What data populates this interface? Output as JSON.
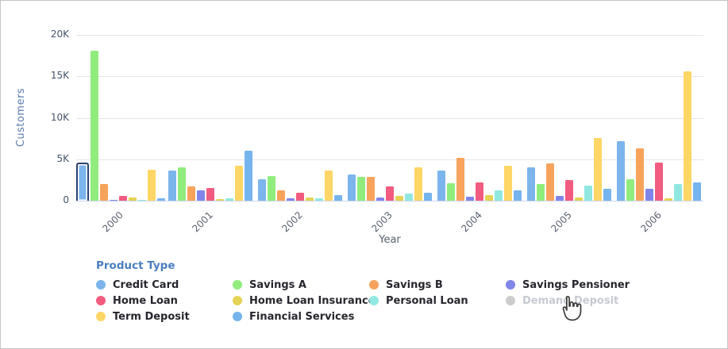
{
  "chart": {
    "y_axis": {
      "title": "Customers",
      "tick_labels": [
        "0",
        "5K",
        "10K",
        "15K",
        "20K"
      ],
      "tick_values": [
        0,
        5000,
        10000,
        15000,
        20000
      ],
      "max": 20000
    },
    "x_axis": {
      "title": "Year"
    }
  },
  "chart_data": {
    "type": "bar",
    "title": "",
    "xlabel": "Year",
    "ylabel": "Customers",
    "ylim": [
      0,
      20000
    ],
    "grid": true,
    "legend_position": "bottom",
    "categories": [
      "2000",
      "2001",
      "2002",
      "2003",
      "2004",
      "2005",
      "2006"
    ],
    "series": [
      {
        "name": "Credit Card",
        "color": "#7cb5ec",
        "values": [
          4400,
          3600,
          2600,
          3200,
          3600,
          4000,
          7200
        ]
      },
      {
        "name": "Savings A",
        "color": "#90ed7d",
        "values": [
          18100,
          4000,
          3000,
          2900,
          2100,
          2000,
          2600
        ]
      },
      {
        "name": "Savings B",
        "color": "#f7a35c",
        "values": [
          2000,
          1700,
          1200,
          2900,
          5200,
          4500,
          6300
        ]
      },
      {
        "name": "Savings Pensioner",
        "color": "#8085e9",
        "values": [
          100,
          1200,
          300,
          400,
          500,
          550,
          1400
        ]
      },
      {
        "name": "Home Loan",
        "color": "#f15c80",
        "values": [
          600,
          1500,
          1000,
          1700,
          2200,
          2500,
          4600
        ]
      },
      {
        "name": "Home Loan Insurance",
        "color": "#e4d354",
        "values": [
          400,
          150,
          400,
          600,
          700,
          400,
          300
        ]
      },
      {
        "name": "Personal Loan",
        "color": "#91e8e1",
        "values": [
          100,
          250,
          300,
          900,
          1200,
          1800,
          2000
        ]
      },
      {
        "name": "Term Deposit",
        "color": "#fed666",
        "values": [
          3700,
          4200,
          3600,
          4000,
          4200,
          7600,
          15600
        ]
      },
      {
        "name": "Financial Services",
        "color": "#76b4ee",
        "values": [
          300,
          6000,
          700,
          1000,
          1200,
          1400,
          2200
        ]
      }
    ],
    "hidden_series": [
      "Demand Deposit"
    ],
    "selected_point": {
      "series": "Credit Card",
      "category": "2000",
      "highlight_color": "#2b3f6e"
    }
  },
  "legend": {
    "title": "Product Type",
    "items": [
      {
        "label": "Credit Card",
        "color": "#7cb5ec",
        "disabled": false
      },
      {
        "label": "Savings A",
        "color": "#90ed7d",
        "disabled": false
      },
      {
        "label": "Savings B",
        "color": "#f7a35c",
        "disabled": false
      },
      {
        "label": "Savings Pensioner",
        "color": "#8085e9",
        "disabled": false
      },
      {
        "label": "Home Loan",
        "color": "#f15c80",
        "disabled": false
      },
      {
        "label": "Home Loan Insurance",
        "color": "#e4d354",
        "disabled": false
      },
      {
        "label": "Personal Loan",
        "color": "#91e8e1",
        "disabled": false
      },
      {
        "label": "Demand Deposit",
        "color": "#cccccc",
        "disabled": true
      },
      {
        "label": "Term Deposit",
        "color": "#fed666",
        "disabled": false
      },
      {
        "label": "Financial Services",
        "color": "#76b4ee",
        "disabled": false
      }
    ]
  },
  "cursor": {
    "type": "hand-pointer",
    "over": "Demand Deposit"
  },
  "colors": {
    "grid": "#e6e6e6",
    "axis_line": "#ccd6eb",
    "y_tick_text": "#44546a",
    "x_tick_text": "#5a6270",
    "y_title_text": "#5c7cb0",
    "legend_title_text": "#4a7ebe",
    "legend_label_text": "#26262e",
    "disabled_text": "#c6cad1"
  }
}
